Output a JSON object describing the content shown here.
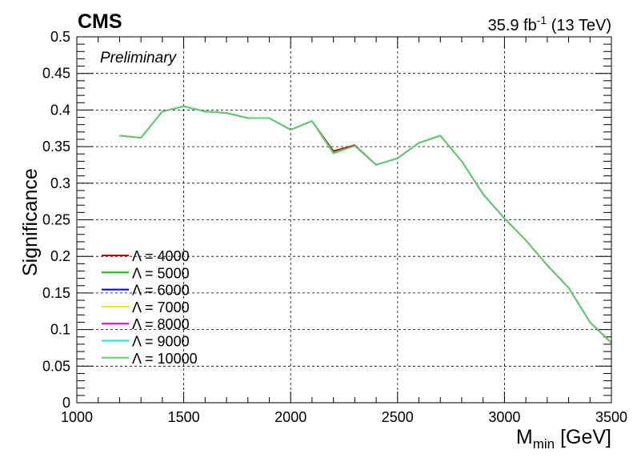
{
  "header": {
    "experiment": "CMS",
    "status": "Preliminary",
    "lumi_value": "35.9 fb",
    "lumi_exp": "-1",
    "energy": "(13 TeV)"
  },
  "chart_data": {
    "type": "line",
    "xlabel_main": "M",
    "xlabel_sub": "min",
    "xlabel_unit": "[GeV]",
    "ylabel": "Significance",
    "xlim": [
      1000,
      3500
    ],
    "ylim": [
      0,
      0.5
    ],
    "x_ticks": [
      "1000",
      "1500",
      "2000",
      "2500",
      "3000",
      "3500"
    ],
    "y_ticks": [
      "0",
      "0.05",
      "0.1",
      "0.15",
      "0.2",
      "0.25",
      "0.3",
      "0.35",
      "0.4",
      "0.45",
      "0.5"
    ],
    "grid": true,
    "legend_position": "bottom-left",
    "x": [
      1200,
      1300,
      1400,
      1500,
      1600,
      1700,
      1800,
      1900,
      2000,
      2100,
      2200,
      2300,
      2400,
      2500,
      2600,
      2700,
      2800,
      2900,
      3000,
      3100,
      3200,
      3300,
      3400,
      3500
    ],
    "series": [
      {
        "name": "Λ = 4000",
        "color": "#cc0000",
        "values": [
          0.365,
          0.362,
          0.398,
          0.405,
          0.398,
          0.396,
          0.389,
          0.389,
          0.373,
          0.385,
          0.344,
          0.352,
          0.325,
          0.334,
          0.355,
          0.365,
          0.33,
          0.285,
          0.252,
          0.222,
          0.188,
          0.157,
          0.11,
          0.082
        ]
      },
      {
        "name": "Λ = 5000",
        "color": "#00cc00",
        "values": [
          0.365,
          0.362,
          0.398,
          0.405,
          0.398,
          0.396,
          0.389,
          0.389,
          0.373,
          0.385,
          0.342,
          0.351,
          0.325,
          0.334,
          0.355,
          0.365,
          0.33,
          0.285,
          0.252,
          0.222,
          0.188,
          0.157,
          0.11,
          0.082
        ]
      },
      {
        "name": "Λ = 6000",
        "color": "#0000cc",
        "values": [
          0.365,
          0.362,
          0.398,
          0.405,
          0.398,
          0.396,
          0.389,
          0.389,
          0.373,
          0.385,
          0.341,
          0.351,
          0.325,
          0.334,
          0.355,
          0.365,
          0.33,
          0.285,
          0.252,
          0.222,
          0.188,
          0.157,
          0.11,
          0.082
        ]
      },
      {
        "name": "Λ = 7000",
        "color": "#eeee00",
        "values": [
          0.365,
          0.362,
          0.398,
          0.405,
          0.398,
          0.396,
          0.389,
          0.389,
          0.373,
          0.385,
          0.341,
          0.351,
          0.325,
          0.334,
          0.355,
          0.365,
          0.33,
          0.285,
          0.252,
          0.222,
          0.188,
          0.157,
          0.11,
          0.082
        ]
      },
      {
        "name": "Λ = 8000",
        "color": "#dd00dd",
        "values": [
          0.365,
          0.362,
          0.398,
          0.405,
          0.398,
          0.396,
          0.389,
          0.389,
          0.373,
          0.385,
          0.341,
          0.351,
          0.325,
          0.334,
          0.355,
          0.365,
          0.33,
          0.285,
          0.252,
          0.222,
          0.188,
          0.157,
          0.11,
          0.082
        ]
      },
      {
        "name": "Λ = 9000",
        "color": "#00eeee",
        "values": [
          0.365,
          0.362,
          0.398,
          0.405,
          0.398,
          0.396,
          0.389,
          0.389,
          0.373,
          0.385,
          0.341,
          0.351,
          0.325,
          0.334,
          0.355,
          0.365,
          0.33,
          0.285,
          0.252,
          0.222,
          0.188,
          0.157,
          0.11,
          0.082
        ]
      },
      {
        "name": "Λ = 10000",
        "color": "#66cc66",
        "values": [
          0.365,
          0.362,
          0.398,
          0.405,
          0.398,
          0.396,
          0.389,
          0.389,
          0.373,
          0.385,
          0.341,
          0.351,
          0.325,
          0.334,
          0.355,
          0.365,
          0.33,
          0.285,
          0.252,
          0.222,
          0.188,
          0.157,
          0.11,
          0.082
        ]
      }
    ]
  }
}
